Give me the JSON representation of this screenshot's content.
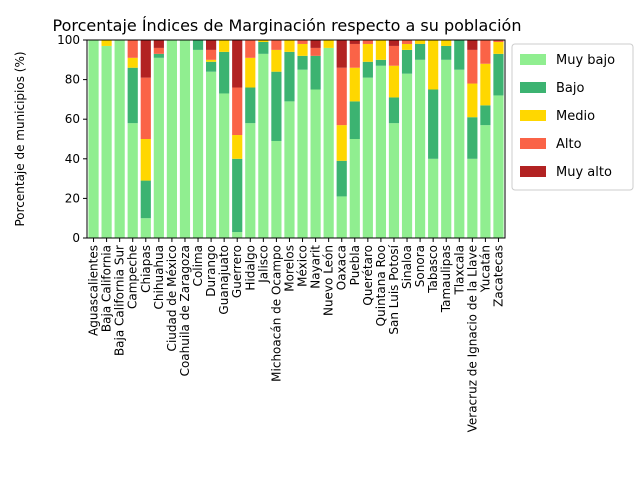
{
  "chart_data": {
    "type": "bar",
    "stacked": true,
    "title": "Porcentaje Índices de Marginación respecto a su población",
    "xlabel": "",
    "ylabel": "Porcentaje de municipios (%)",
    "ylim": [
      0,
      100
    ],
    "yticks": [
      0,
      20,
      40,
      60,
      80,
      100
    ],
    "grid": false,
    "legend_position": "outside-right-top",
    "categories": [
      "Aguascalientes",
      "Baja California",
      "Baja California Sur",
      "Campeche",
      "Chiapas",
      "Chihuahua",
      "Ciudad de México",
      "Coahuila de Zaragoza",
      "Colima",
      "Durango",
      "Guanajuato",
      "Guerrero",
      "Hidalgo",
      "Jalisco",
      "Michoacán de Ocampo",
      "Morelos",
      "México",
      "Nayarit",
      "Nuevo León",
      "Oaxaca",
      "Puebla",
      "Querétaro",
      "Quintana Roo",
      "San Luis Potosí",
      "Sinaloa",
      "Sonora",
      "Tabasco",
      "Tamaulipas",
      "Tlaxcala",
      "Veracruz de Ignacio de la Llave",
      "Yucatán",
      "Zacatecas"
    ],
    "series": [
      {
        "name": "Muy bajo",
        "color": "#90ee90",
        "values": [
          100,
          97,
          100,
          58,
          10,
          91,
          100,
          100,
          95,
          84,
          73,
          3,
          58,
          93,
          49,
          69,
          85,
          75,
          96,
          21,
          50,
          81,
          87,
          58,
          83,
          90,
          40,
          90,
          85,
          40,
          57,
          72
        ]
      },
      {
        "name": "Bajo",
        "color": "#3cb371",
        "values": [
          0,
          0,
          0,
          28,
          19,
          2,
          0,
          0,
          5,
          5,
          21,
          37,
          18,
          6,
          35,
          25,
          7,
          17,
          0,
          18,
          19,
          8,
          3,
          13,
          12,
          8,
          35,
          7,
          15,
          21,
          10,
          21
        ]
      },
      {
        "name": "Medio",
        "color": "#ffd700",
        "values": [
          0,
          3,
          0,
          5,
          21,
          0,
          0,
          0,
          0,
          1,
          6,
          12,
          15,
          1,
          11,
          6,
          6,
          0,
          4,
          18,
          17,
          9,
          10,
          16,
          3,
          2,
          25,
          3,
          0,
          17,
          21,
          6
        ]
      },
      {
        "name": "Alto",
        "color": "#fa6347",
        "values": [
          0,
          0,
          0,
          9,
          31,
          3,
          0,
          0,
          0,
          5,
          0,
          24,
          9,
          0,
          5,
          0,
          2,
          4,
          0,
          29,
          12,
          2,
          0,
          10,
          2,
          0,
          0,
          0,
          0,
          17,
          12,
          1
        ]
      },
      {
        "name": "Muy alto",
        "color": "#b22222",
        "values": [
          0,
          0,
          0,
          0,
          19,
          4,
          0,
          0,
          0,
          5,
          0,
          24,
          0,
          0,
          0,
          0,
          0,
          4,
          0,
          14,
          2,
          0,
          0,
          3,
          0,
          0,
          0,
          0,
          0,
          5,
          0,
          0
        ]
      }
    ]
  }
}
